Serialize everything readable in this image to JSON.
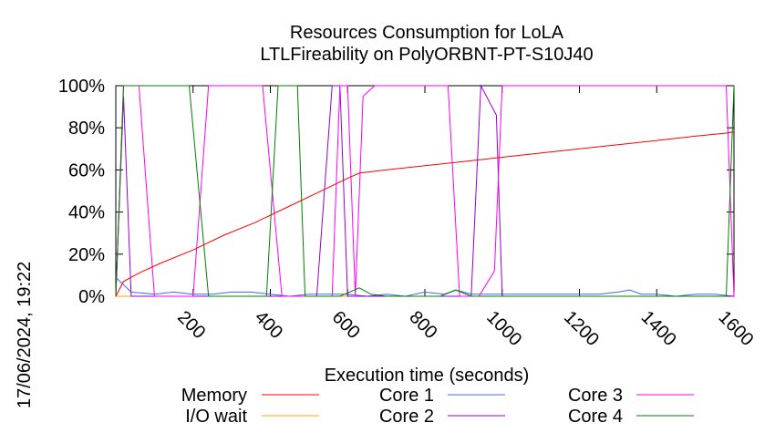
{
  "timestamp": "17/06/2024, 19:22",
  "chart_data": {
    "type": "line",
    "title": "Resources Consumption for LoLA",
    "subtitle": "LTLFireability on PolyORBNT-PT-S10J40",
    "xlabel": "Execution time (seconds)",
    "ylabel": "",
    "xlim": [
      0,
      1600
    ],
    "ylim": [
      0,
      100
    ],
    "xticks": [
      200,
      400,
      600,
      800,
      1000,
      1200,
      1400,
      1600
    ],
    "yticks": [
      0,
      20,
      40,
      60,
      80,
      100
    ],
    "ytick_labels": [
      "0%",
      "20%",
      "40%",
      "60%",
      "80%",
      "100%"
    ],
    "grid": false,
    "legend_placement": "bottom",
    "series": [
      {
        "name": "Memory",
        "color": "#ff0000",
        "points": [
          [
            0,
            0
          ],
          [
            20,
            7
          ],
          [
            60,
            11
          ],
          [
            120,
            16
          ],
          [
            200,
            22
          ],
          [
            280,
            29
          ],
          [
            360,
            35
          ],
          [
            440,
            42
          ],
          [
            520,
            49
          ],
          [
            600,
            56
          ],
          [
            630,
            58.5
          ],
          [
            700,
            60
          ],
          [
            800,
            62
          ],
          [
            900,
            64
          ],
          [
            1000,
            66
          ],
          [
            1100,
            68
          ],
          [
            1200,
            70
          ],
          [
            1300,
            72
          ],
          [
            1400,
            74
          ],
          [
            1500,
            76
          ],
          [
            1580,
            77.5
          ],
          [
            1600,
            78
          ]
        ]
      },
      {
        "name": "I/O wait",
        "color": "#ffa500",
        "points": [
          [
            0,
            0
          ],
          [
            1600,
            0
          ]
        ]
      },
      {
        "name": "Core 1",
        "color": "#4169e1",
        "points": [
          [
            0,
            9
          ],
          [
            40,
            2
          ],
          [
            100,
            1
          ],
          [
            150,
            2
          ],
          [
            200,
            1
          ],
          [
            250,
            1
          ],
          [
            300,
            2
          ],
          [
            350,
            2
          ],
          [
            400,
            1
          ],
          [
            450,
            0
          ],
          [
            500,
            1
          ],
          [
            550,
            1
          ],
          [
            600,
            1
          ],
          [
            650,
            0
          ],
          [
            700,
            1
          ],
          [
            750,
            0
          ],
          [
            800,
            2
          ],
          [
            850,
            1
          ],
          [
            880,
            3
          ],
          [
            920,
            1
          ],
          [
            1000,
            1
          ],
          [
            1050,
            1
          ],
          [
            1100,
            1
          ],
          [
            1200,
            1
          ],
          [
            1250,
            1
          ],
          [
            1300,
            2
          ],
          [
            1330,
            3
          ],
          [
            1360,
            1
          ],
          [
            1400,
            1
          ],
          [
            1450,
            0
          ],
          [
            1500,
            1
          ],
          [
            1550,
            1
          ],
          [
            1600,
            0
          ]
        ]
      },
      {
        "name": "Core 2",
        "color": "#9400d3",
        "points": [
          [
            0,
            0
          ],
          [
            20,
            95
          ],
          [
            40,
            0
          ],
          [
            520,
            0
          ],
          [
            560,
            100
          ],
          [
            580,
            100
          ],
          [
            600,
            0
          ],
          [
            920,
            0
          ],
          [
            945,
            100
          ],
          [
            985,
            86
          ],
          [
            1000,
            0
          ],
          [
            1600,
            0
          ]
        ]
      },
      {
        "name": "Core 3",
        "color": "#ff00ff",
        "points": [
          [
            0,
            0
          ],
          [
            20,
            100
          ],
          [
            60,
            100
          ],
          [
            100,
            0
          ],
          [
            200,
            0
          ],
          [
            240,
            100
          ],
          [
            380,
            100
          ],
          [
            430,
            0
          ],
          [
            560,
            0
          ],
          [
            580,
            100
          ],
          [
            600,
            100
          ],
          [
            620,
            0
          ],
          [
            640,
            95
          ],
          [
            670,
            100
          ],
          [
            860,
            100
          ],
          [
            890,
            0
          ],
          [
            940,
            0
          ],
          [
            980,
            12
          ],
          [
            1000,
            100
          ],
          [
            1580,
            100
          ],
          [
            1600,
            0
          ]
        ]
      },
      {
        "name": "Core 4",
        "color": "#008000",
        "points": [
          [
            0,
            0
          ],
          [
            20,
            100
          ],
          [
            190,
            100
          ],
          [
            240,
            0
          ],
          [
            390,
            0
          ],
          [
            420,
            100
          ],
          [
            470,
            100
          ],
          [
            490,
            0
          ],
          [
            580,
            0
          ],
          [
            630,
            4
          ],
          [
            660,
            1
          ],
          [
            700,
            0
          ],
          [
            840,
            0
          ],
          [
            880,
            3
          ],
          [
            920,
            0
          ],
          [
            1580,
            0
          ],
          [
            1600,
            100
          ]
        ]
      }
    ]
  }
}
